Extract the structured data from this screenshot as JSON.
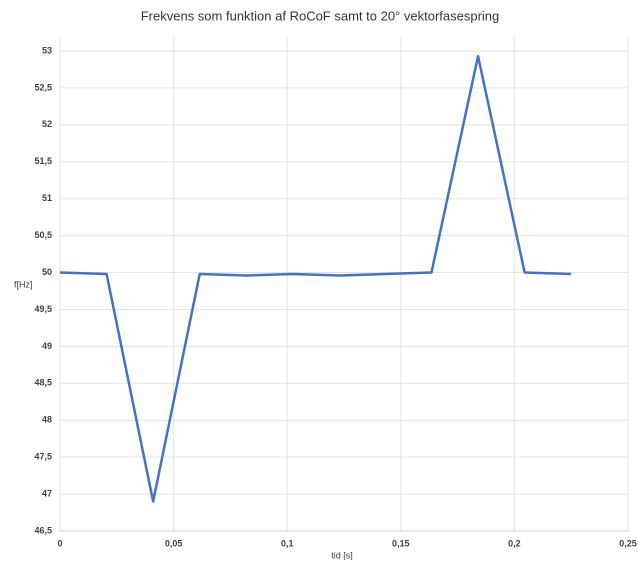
{
  "chart_data": {
    "type": "line",
    "title": "Frekvens som funktion af RoCoF samt to 20° vektorfasespring",
    "xlabel": "tid [s]",
    "ylabel": "f[Hz]",
    "x": [
      0,
      0.0205,
      0.041,
      0.0615,
      0.082,
      0.1025,
      0.123,
      0.1635,
      0.184,
      0.2045,
      0.225
    ],
    "series": [
      {
        "name": "f",
        "color": "#4472c4",
        "values": [
          50,
          49.98,
          46.9,
          49.98,
          49.96,
          49.98,
          49.96,
          50,
          52.93,
          50,
          49.98
        ]
      }
    ],
    "xlim": [
      0,
      0.25
    ],
    "xticks": [
      0,
      {
        "value": 0.05,
        "label": "0,05"
      },
      {
        "value": 0.1,
        "label": "0,1"
      },
      {
        "value": 0.15,
        "label": "0,15"
      },
      {
        "value": 0.2,
        "label": "0,2"
      },
      {
        "value": 0.25,
        "label": "0,25"
      }
    ],
    "ylim": [
      46.5,
      53
    ],
    "yticks": [
      {
        "value": 46.5,
        "label": "46,5"
      },
      47,
      {
        "value": 47.5,
        "label": "47,5"
      },
      48,
      {
        "value": 48.5,
        "label": "48,5"
      },
      49,
      {
        "value": 49.5,
        "label": "49,5"
      },
      50,
      {
        "value": 50.5,
        "label": "50,5"
      },
      51,
      {
        "value": 51.5,
        "label": "51,5"
      },
      52,
      {
        "value": 52.5,
        "label": "52,5"
      },
      53
    ],
    "grid": true
  }
}
